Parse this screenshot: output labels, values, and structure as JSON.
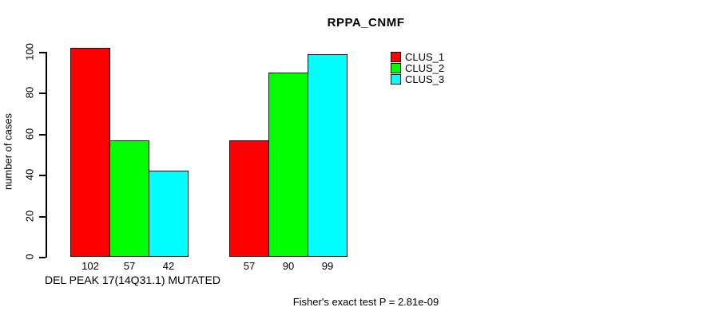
{
  "title": "RPPA_CNMF",
  "ylabel": "number of cases",
  "xlabel": "DEL PEAK 17(14Q31.1) MUTATED",
  "footer": "Fisher's exact test P = 2.81e-09",
  "legend": [
    {
      "label": "CLUS_1",
      "color": "#FF0000"
    },
    {
      "label": "CLUS_2",
      "color": "#00FF00"
    },
    {
      "label": "CLUS_3",
      "color": "#00FFFF"
    }
  ],
  "chart_data": {
    "type": "bar",
    "title": "RPPA_CNMF",
    "xlabel": "DEL PEAK 17(14Q31.1) MUTATED",
    "ylabel": "number of cases",
    "ylim": [
      0,
      100
    ],
    "yticks": [
      0,
      20,
      40,
      60,
      80,
      100
    ],
    "grid": false,
    "legend_position": "top-right",
    "group_labels": [
      "DEL PEAK 17(14Q31.1) MUTATED",
      ""
    ],
    "series": [
      {
        "name": "CLUS_1",
        "color": "#FF0000",
        "values": [
          102,
          57
        ]
      },
      {
        "name": "CLUS_2",
        "color": "#00FF00",
        "values": [
          57,
          90
        ]
      },
      {
        "name": "CLUS_3",
        "color": "#00FFFF",
        "values": [
          42,
          99
        ]
      }
    ],
    "bar_labels": [
      [
        102,
        57,
        42
      ],
      [
        57,
        90,
        99
      ]
    ],
    "annotation": "Fisher's exact test P = 2.81e-09"
  }
}
